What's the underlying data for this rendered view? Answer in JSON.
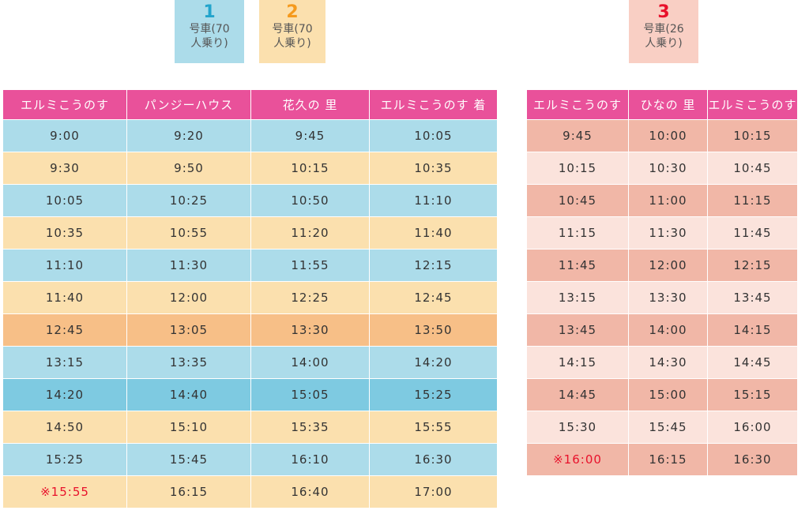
{
  "colors": {
    "header": "#e9519a",
    "bus1": "#acdcea",
    "bus2": "#fbe0ae",
    "bus3": "#f9cfc4",
    "bus1_num": "#22a4cc",
    "bus2_num": "#f59a1d",
    "bus3_num": "#e8112b",
    "row_blue": "#acdcea",
    "row_cream": "#fbe0ae",
    "row_orange": "#f7bf87",
    "row_deep_blue": "#7ecae1",
    "row_salmon": "#f1b7a7",
    "row_pink": "#fbe3dc",
    "mark": "#e8112b"
  },
  "legend": [
    {
      "number": "1",
      "caption_line1": "号車(70",
      "caption_line2": "人乗り)"
    },
    {
      "number": "2",
      "caption_line1": "号車(70",
      "caption_line2": "人乗り)"
    },
    {
      "number": "3",
      "caption_line1": "号車(26",
      "caption_line2": "人乗り)"
    }
  ],
  "table1": {
    "headers": [
      "エルミこうのす",
      "パンジーハウス",
      "花久の 里",
      "エルミこうのす 着"
    ],
    "rows": [
      {
        "style": "blue",
        "mark": "",
        "cells": [
          "9:00",
          "9:20",
          "9:45",
          "10:05"
        ]
      },
      {
        "style": "cream",
        "mark": "",
        "cells": [
          "9:30",
          "9:50",
          "10:15",
          "10:35"
        ]
      },
      {
        "style": "blue",
        "mark": "",
        "cells": [
          "10:05",
          "10:25",
          "10:50",
          "11:10"
        ]
      },
      {
        "style": "cream",
        "mark": "",
        "cells": [
          "10:35",
          "10:55",
          "11:20",
          "11:40"
        ]
      },
      {
        "style": "blue",
        "mark": "",
        "cells": [
          "11:10",
          "11:30",
          "11:55",
          "12:15"
        ]
      },
      {
        "style": "cream",
        "mark": "",
        "cells": [
          "11:40",
          "12:00",
          "12:25",
          "12:45"
        ]
      },
      {
        "style": "orange",
        "mark": "",
        "cells": [
          "12:45",
          "13:05",
          "13:30",
          "13:50"
        ]
      },
      {
        "style": "blue",
        "mark": "",
        "cells": [
          "13:15",
          "13:35",
          "14:00",
          "14:20"
        ]
      },
      {
        "style": "deep_blue",
        "mark": "",
        "cells": [
          "14:20",
          "14:40",
          "15:05",
          "15:25"
        ]
      },
      {
        "style": "cream",
        "mark": "",
        "cells": [
          "14:50",
          "15:10",
          "15:35",
          "15:55"
        ]
      },
      {
        "style": "blue",
        "mark": "",
        "cells": [
          "15:25",
          "15:45",
          "16:10",
          "16:30"
        ]
      },
      {
        "style": "cream",
        "mark": "※",
        "cells": [
          "15:55",
          "16:15",
          "16:40",
          "17:00"
        ]
      }
    ]
  },
  "table2": {
    "headers": [
      "エルミこうのす",
      "ひなの 里",
      "エルミこうのす"
    ],
    "rows": [
      {
        "style": "salmon",
        "mark": "",
        "cells": [
          "9:45",
          "10:00",
          "10:15"
        ]
      },
      {
        "style": "pink",
        "mark": "",
        "cells": [
          "10:15",
          "10:30",
          "10:45"
        ]
      },
      {
        "style": "salmon",
        "mark": "",
        "cells": [
          "10:45",
          "11:00",
          "11:15"
        ]
      },
      {
        "style": "pink",
        "mark": "",
        "cells": [
          "11:15",
          "11:30",
          "11:45"
        ]
      },
      {
        "style": "salmon",
        "mark": "",
        "cells": [
          "11:45",
          "12:00",
          "12:15"
        ]
      },
      {
        "style": "pink",
        "mark": "",
        "cells": [
          "13:15",
          "13:30",
          "13:45"
        ]
      },
      {
        "style": "salmon",
        "mark": "",
        "cells": [
          "13:45",
          "14:00",
          "14:15"
        ]
      },
      {
        "style": "pink",
        "mark": "",
        "cells": [
          "14:15",
          "14:30",
          "14:45"
        ]
      },
      {
        "style": "salmon",
        "mark": "",
        "cells": [
          "14:45",
          "15:00",
          "15:15"
        ]
      },
      {
        "style": "pink",
        "mark": "",
        "cells": [
          "15:30",
          "15:45",
          "16:00"
        ]
      },
      {
        "style": "salmon",
        "mark": "※",
        "cells": [
          "16:00",
          "16:15",
          "16:30"
        ]
      }
    ]
  }
}
